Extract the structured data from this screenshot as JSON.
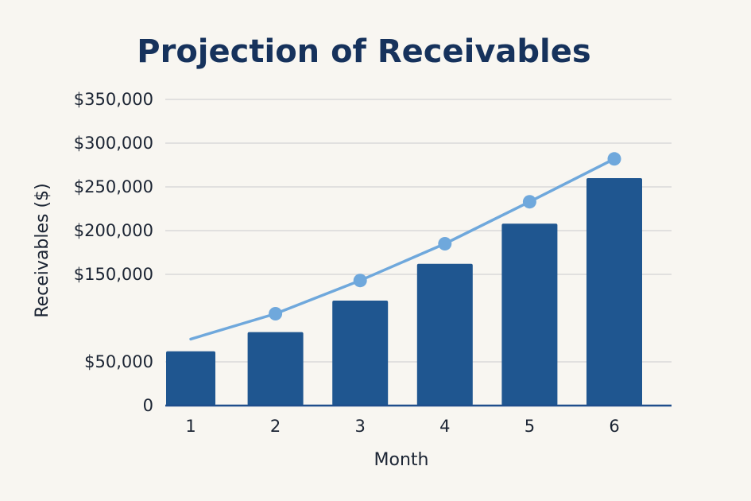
{
  "chart_data": {
    "type": "bar",
    "title": "Projection of Receivables",
    "xlabel": "Month",
    "ylabel": "Receivables ($)",
    "categories": [
      "1",
      "2",
      "3",
      "4",
      "5",
      "6"
    ],
    "y_tick_labels": [
      "0",
      "$50,000",
      "$150,000",
      "$200,000",
      "$250,000",
      "$300,000",
      "$350,000"
    ],
    "y_tick_values": [
      0,
      50000,
      150000,
      200000,
      250000,
      300000,
      350000
    ],
    "ylim": [
      0,
      350000
    ],
    "grid": true,
    "series": [
      {
        "type": "bar",
        "color": "#1f5690",
        "values": [
          62000,
          84000,
          120000,
          162000,
          208000,
          260000
        ]
      },
      {
        "type": "line",
        "color": "#6fa8dc",
        "values": [
          76000,
          105000,
          143000,
          185000,
          233000,
          282000
        ]
      }
    ],
    "colors": {
      "bar": "#1f5690",
      "line": "#6fa8dc",
      "grid": "#d9d9d9",
      "axis": "#1f4e8c"
    }
  }
}
